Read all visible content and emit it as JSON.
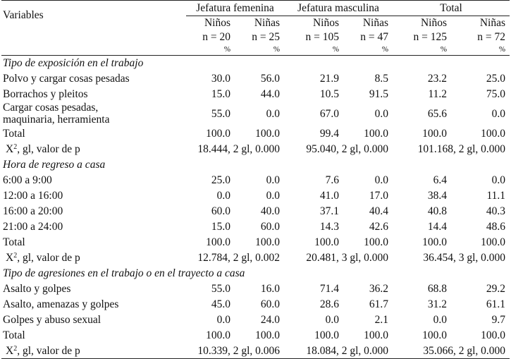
{
  "header": {
    "variables_label": "Variables",
    "groups": [
      "Jefatura femenina",
      "Jefatura masculina",
      "Total"
    ],
    "sub_labels": [
      "Niños",
      "Niñas",
      "Niños",
      "Niñas",
      "Niños",
      "Niñas"
    ],
    "n_labels": [
      "n = 20",
      "n = 25",
      "n = 105",
      "n = 47",
      "n = 125",
      "n = 72"
    ],
    "pct": "%"
  },
  "chi_label": "X",
  "chi_label_sup": "2",
  "chi_label_rest": ", gl, valor de p",
  "sections": [
    {
      "title": "Tipo de exposición en el trabajo",
      "rows": [
        {
          "label": "Polvo y cargar cosas pesadas",
          "values": [
            "30.0",
            "56.0",
            "21.9",
            "8.5",
            "23.2",
            "25.0"
          ]
        },
        {
          "label": "Borrachos y pleitos",
          "values": [
            "15.0",
            "44.0",
            "10.5",
            "91.5",
            "11.2",
            "75.0"
          ]
        },
        {
          "label": "Cargar cosas pesadas,\nmaquinaria, herramienta",
          "values": [
            "55.0",
            "0.0",
            "67.0",
            "0.0",
            "65.6",
            "0.0"
          ]
        },
        {
          "label": "Total",
          "values": [
            "100.0",
            "100.0",
            "99.4",
            "100.0",
            "100.0",
            "100.0"
          ]
        }
      ],
      "chi": [
        "18.444, 2 gl, 0.000",
        "95.040, 2 gl, 0.000",
        "101.168, 2 gl, 0.000"
      ]
    },
    {
      "title": "Hora de regreso a casa",
      "rows": [
        {
          "label": "6:00 a 9:00",
          "values": [
            "25.0",
            "0.0",
            "7.6",
            "0.0",
            "6.4",
            "0.0"
          ]
        },
        {
          "label": "12:00 a 16:00",
          "values": [
            "0.0",
            "0.0",
            "41.0",
            "17.0",
            "38.4",
            "11.1"
          ]
        },
        {
          "label": "16:00 a 20:00",
          "values": [
            "60.0",
            "40.0",
            "37.1",
            "40.4",
            "40.8",
            "40.3"
          ]
        },
        {
          "label": "21:00 a 24:00",
          "values": [
            "15.0",
            "60.0",
            "14.3",
            "42.6",
            "14.4",
            "48.6"
          ]
        },
        {
          "label": "Total",
          "values": [
            "100.0",
            "100.0",
            "100.0",
            "100.0",
            "100.0",
            "100.0"
          ]
        }
      ],
      "chi": [
        "12.784, 2 gl, 0.002",
        "20.481, 3 gl, 0.000",
        "36.454, 3 gl, 0.000"
      ]
    },
    {
      "title": "Tipo de agresiones en el trabajo o en el trayecto a casa",
      "rows": [
        {
          "label": "Asalto y golpes",
          "values": [
            "55.0",
            "16.0",
            "71.4",
            "36.2",
            "68.8",
            "29.2"
          ]
        },
        {
          "label": "Asalto, amenazas y golpes",
          "values": [
            "45.0",
            "60.0",
            "28.6",
            "61.7",
            "31.2",
            "61.1"
          ]
        },
        {
          "label": "Golpes y abuso sexual",
          "values": [
            "0.0",
            "24.0",
            "0.0",
            "2.1",
            "0.0",
            "9.7"
          ]
        },
        {
          "label": "Total",
          "values": [
            "100.0",
            "100.0",
            "100.0",
            "100.0",
            "100.0",
            "100.0"
          ]
        }
      ],
      "chi": [
        "10.339, 2 gl, 0.006",
        "18.084, 2 gl, 0.000",
        "35.066, 2 gl, 0.000"
      ]
    }
  ]
}
